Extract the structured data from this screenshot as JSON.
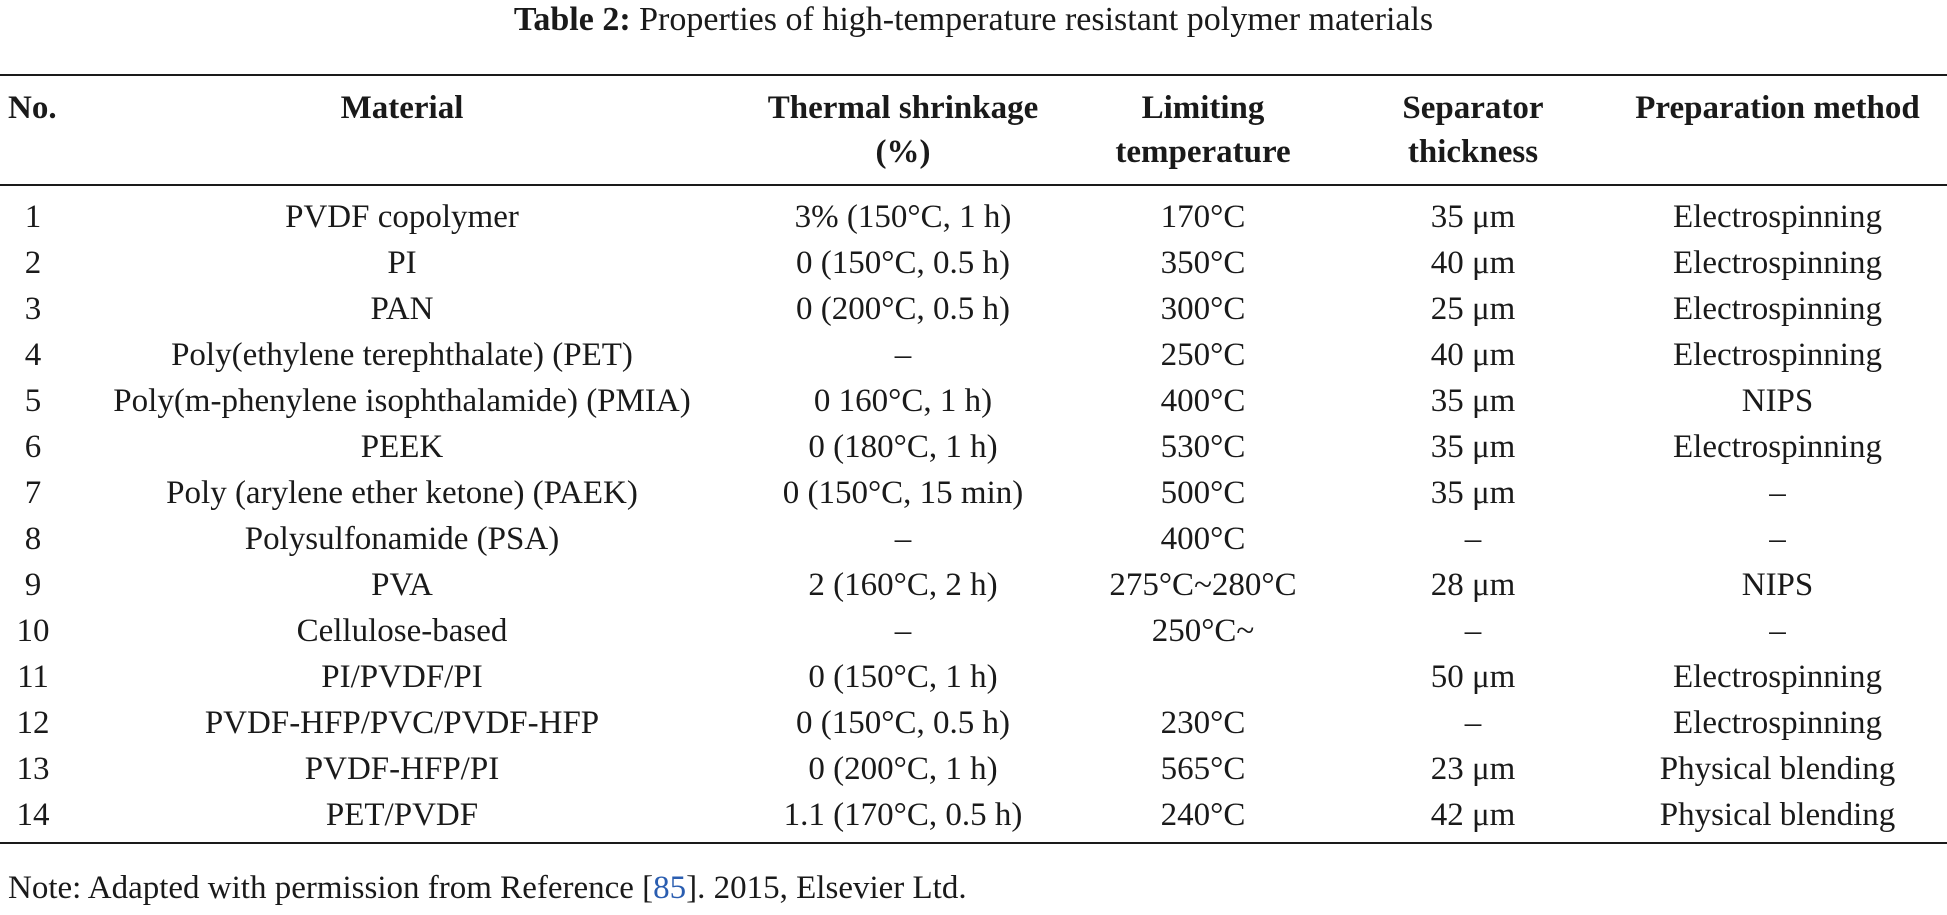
{
  "caption": {
    "label": "Table 2:",
    "text": "Properties of high-temperature resistant polymer materials"
  },
  "table": {
    "headers": {
      "no": "No.",
      "material": "Material",
      "shrinkage_line1": "Thermal shrinkage",
      "shrinkage_line2": "(%)",
      "limiting_line1": "Limiting",
      "limiting_line2": "temperature",
      "thickness_line1": "Separator",
      "thickness_line2": "thickness",
      "preparation": "Preparation method"
    },
    "rows": [
      {
        "no": "1",
        "material": "PVDF copolymer",
        "shrinkage": "3% (150°C, 1 h)",
        "limiting": "170°C",
        "thickness": "35 μm",
        "preparation": "Electrospinning"
      },
      {
        "no": "2",
        "material": "PI",
        "shrinkage": "0 (150°C, 0.5 h)",
        "limiting": "350°C",
        "thickness": "40 μm",
        "preparation": "Electrospinning"
      },
      {
        "no": "3",
        "material": "PAN",
        "shrinkage": "0 (200°C, 0.5 h)",
        "limiting": "300°C",
        "thickness": "25 μm",
        "preparation": "Electrospinning"
      },
      {
        "no": "4",
        "material": "Poly(ethylene terephthalate) (PET)",
        "shrinkage": "–",
        "limiting": "250°C",
        "thickness": "40 μm",
        "preparation": "Electrospinning"
      },
      {
        "no": "5",
        "material": "Poly(m-phenylene isophthalamide) (PMIA)",
        "shrinkage": "0 160°C, 1 h)",
        "limiting": "400°C",
        "thickness": "35 μm",
        "preparation": "NIPS"
      },
      {
        "no": "6",
        "material": "PEEK",
        "shrinkage": "0 (180°C, 1 h)",
        "limiting": "530°C",
        "thickness": "35 μm",
        "preparation": "Electrospinning"
      },
      {
        "no": "7",
        "material": "Poly (arylene ether ketone) (PAEK)",
        "shrinkage": "0 (150°C, 15 min)",
        "limiting": "500°C",
        "thickness": "35 μm",
        "preparation": "–"
      },
      {
        "no": "8",
        "material": "Polysulfonamide (PSA)",
        "shrinkage": "–",
        "limiting": "400°C",
        "thickness": "–",
        "preparation": "–"
      },
      {
        "no": "9",
        "material": "PVA",
        "shrinkage": "2 (160°C, 2 h)",
        "limiting": "275°C~280°C",
        "thickness": "28 μm",
        "preparation": "NIPS"
      },
      {
        "no": "10",
        "material": "Cellulose-based",
        "shrinkage": "–",
        "limiting": "250°C~",
        "thickness": "–",
        "preparation": "–"
      },
      {
        "no": "11",
        "material": "PI/PVDF/PI",
        "shrinkage": "0 (150°C, 1 h)",
        "limiting": "",
        "thickness": "50 μm",
        "preparation": "Electrospinning"
      },
      {
        "no": "12",
        "material": "PVDF-HFP/PVC/PVDF-HFP",
        "shrinkage": "0 (150°C, 0.5 h)",
        "limiting": "230°C",
        "thickness": "–",
        "preparation": "Electrospinning"
      },
      {
        "no": "13",
        "material": "PVDF-HFP/PI",
        "shrinkage": "0 (200°C, 1 h)",
        "limiting": "565°C",
        "thickness": "23 μm",
        "preparation": "Physical blending"
      },
      {
        "no": "14",
        "material": "PET/PVDF",
        "shrinkage": "1.1 (170°C, 0.5 h)",
        "limiting": "240°C",
        "thickness": "42 μm",
        "preparation": "Physical blending"
      }
    ]
  },
  "note": {
    "prefix": "Note: Adapted with permission from Reference [",
    "ref": "85",
    "suffix": "]. 2015, Elsevier Ltd."
  }
}
